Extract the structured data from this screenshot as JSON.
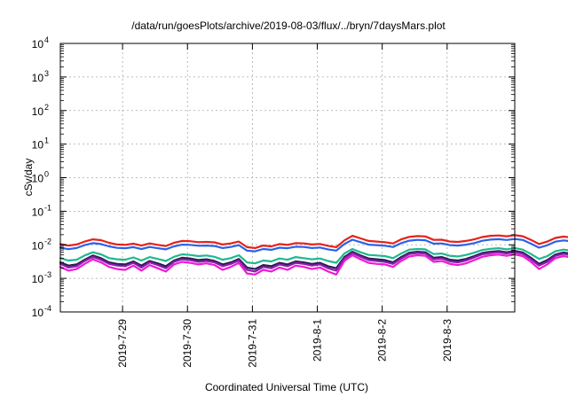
{
  "chart_data": {
    "type": "line",
    "title": "/data/run/goesPlots/archive/2019-08-03/flux/../bryn/7daysMars.plot",
    "xlabel": "Coordinated Universal Time (UTC)",
    "ylabel": "cSv/day",
    "y_scale": "log",
    "ylim": [
      0.0001,
      10000
    ],
    "y_ticks": [
      {
        "value": 0.0001,
        "base": "10",
        "exp": "-4"
      },
      {
        "value": 0.001,
        "base": "10",
        "exp": "-3"
      },
      {
        "value": 0.01,
        "base": "10",
        "exp": "-2"
      },
      {
        "value": 0.1,
        "base": "10",
        "exp": "-1"
      },
      {
        "value": 1,
        "base": "10",
        "exp": "0"
      },
      {
        "value": 10,
        "base": "10",
        "exp": "1"
      },
      {
        "value": 100,
        "base": "10",
        "exp": "2"
      },
      {
        "value": 1000,
        "base": "10",
        "exp": "3"
      },
      {
        "value": 10000,
        "base": "10",
        "exp": "4"
      }
    ],
    "x_range": [
      "2019-07-28T01:00",
      "2019-08-04T01:00"
    ],
    "x_ticks": [
      {
        "label": "2019-7-29",
        "value": "2019-07-29"
      },
      {
        "label": "2019-7-30",
        "value": "2019-07-30"
      },
      {
        "label": "2019-7-31",
        "value": "2019-07-31"
      },
      {
        "label": "2019-8-1",
        "value": "2019-08-01"
      },
      {
        "label": "2019-8-2",
        "value": "2019-08-02"
      },
      {
        "label": "2019-8-3",
        "value": "2019-08-03"
      }
    ],
    "grid": true,
    "x_step_hours": 3,
    "series": [
      {
        "color": "#e8201a",
        "values": [
          0.0105,
          0.0095,
          0.0102,
          0.0125,
          0.0145,
          0.0138,
          0.0115,
          0.0102,
          0.01,
          0.0108,
          0.0095,
          0.011,
          0.01,
          0.0092,
          0.0115,
          0.013,
          0.0128,
          0.012,
          0.0122,
          0.0118,
          0.0102,
          0.011,
          0.0125,
          0.0085,
          0.008,
          0.0095,
          0.009,
          0.0105,
          0.01,
          0.0112,
          0.011,
          0.0102,
          0.0106,
          0.0093,
          0.0085,
          0.0135,
          0.0185,
          0.0155,
          0.013,
          0.0125,
          0.012,
          0.011,
          0.0145,
          0.0172,
          0.0182,
          0.0178,
          0.014,
          0.0142,
          0.0125,
          0.0122,
          0.013,
          0.0145,
          0.017,
          0.0185,
          0.019,
          0.018,
          0.0193,
          0.018,
          0.014,
          0.0105,
          0.0125,
          0.016,
          0.0175,
          0.0165,
          0.017,
          0.0175,
          0.0182,
          0.0178,
          0.016,
          0.015,
          0.0143,
          0.0155,
          0.0175,
          0.0185,
          0.0205,
          0.0195,
          0.018,
          0.016,
          0.014,
          0.012,
          0.011
        ]
      },
      {
        "color": "#2a62e8",
        "values": [
          0.0082,
          0.0074,
          0.008,
          0.0098,
          0.0112,
          0.0105,
          0.009,
          0.0081,
          0.0079,
          0.0085,
          0.0075,
          0.0086,
          0.0079,
          0.0073,
          0.009,
          0.0101,
          0.01,
          0.0094,
          0.0095,
          0.0092,
          0.008,
          0.0086,
          0.0098,
          0.0067,
          0.0064,
          0.0075,
          0.0071,
          0.0082,
          0.0079,
          0.0088,
          0.0086,
          0.008,
          0.0083,
          0.0073,
          0.0067,
          0.0105,
          0.0142,
          0.012,
          0.0101,
          0.0098,
          0.0094,
          0.0086,
          0.0112,
          0.0133,
          0.014,
          0.0137,
          0.0108,
          0.011,
          0.0098,
          0.0095,
          0.0101,
          0.0112,
          0.0132,
          0.0143,
          0.0147,
          0.0139,
          0.0149,
          0.0139,
          0.0108,
          0.0082,
          0.0097,
          0.0124,
          0.0135,
          0.0127,
          0.0131,
          0.0135,
          0.014,
          0.0138,
          0.0124,
          0.0116,
          0.0111,
          0.012,
          0.0135,
          0.0143,
          0.0158,
          0.015,
          0.0139,
          0.0124,
          0.0108,
          0.0094,
          0.0086
        ]
      },
      {
        "color": "#1fb890",
        "values": [
          0.004,
          0.0034,
          0.0036,
          0.0048,
          0.006,
          0.0052,
          0.004,
          0.0037,
          0.0036,
          0.0042,
          0.0034,
          0.0043,
          0.0038,
          0.0033,
          0.0044,
          0.0052,
          0.005,
          0.0046,
          0.0048,
          0.0044,
          0.0036,
          0.004,
          0.0049,
          0.003,
          0.0028,
          0.0034,
          0.0032,
          0.0039,
          0.0036,
          0.0043,
          0.004,
          0.0037,
          0.0039,
          0.0033,
          0.0029,
          0.0055,
          0.0075,
          0.006,
          0.005,
          0.0048,
          0.0046,
          0.004,
          0.0055,
          0.0072,
          0.0075,
          0.0073,
          0.0053,
          0.0055,
          0.0047,
          0.0045,
          0.005,
          0.0058,
          0.007,
          0.0076,
          0.0079,
          0.0073,
          0.008,
          0.0072,
          0.0053,
          0.0038,
          0.0046,
          0.0064,
          0.0072,
          0.0067,
          0.007,
          0.0072,
          0.0076,
          0.0074,
          0.0064,
          0.0058,
          0.0055,
          0.0061,
          0.0072,
          0.0077,
          0.0087,
          0.0082,
          0.0074,
          0.0064,
          0.0054,
          0.0046,
          0.0041
        ]
      },
      {
        "color": "#2a1a52",
        "values": [
          0.003,
          0.0024,
          0.0026,
          0.0036,
          0.0048,
          0.004,
          0.003,
          0.0027,
          0.0026,
          0.0032,
          0.0024,
          0.0033,
          0.0028,
          0.0023,
          0.0034,
          0.0041,
          0.0039,
          0.0035,
          0.0037,
          0.0033,
          0.0026,
          0.003,
          0.0038,
          0.0021,
          0.0019,
          0.0025,
          0.0023,
          0.0029,
          0.0026,
          0.0032,
          0.003,
          0.0027,
          0.0029,
          0.0023,
          0.002,
          0.0043,
          0.0062,
          0.0048,
          0.0039,
          0.0037,
          0.0035,
          0.003,
          0.0043,
          0.0058,
          0.0062,
          0.006,
          0.0041,
          0.0043,
          0.0036,
          0.0034,
          0.0038,
          0.0046,
          0.0057,
          0.0062,
          0.0065,
          0.006,
          0.0066,
          0.0059,
          0.0041,
          0.0027,
          0.0035,
          0.0051,
          0.0059,
          0.0054,
          0.0057,
          0.0059,
          0.0063,
          0.0061,
          0.0051,
          0.0046,
          0.0043,
          0.0049,
          0.0059,
          0.0064,
          0.0073,
          0.0068,
          0.0061,
          0.0051,
          0.0042,
          0.0035,
          0.003
        ]
      },
      {
        "color": "#8a1faa",
        "values": [
          0.0027,
          0.0021,
          0.0023,
          0.0033,
          0.0044,
          0.0036,
          0.0027,
          0.0024,
          0.0023,
          0.0029,
          0.0021,
          0.003,
          0.0025,
          0.002,
          0.0031,
          0.0037,
          0.0035,
          0.0031,
          0.0033,
          0.003,
          0.0023,
          0.0027,
          0.0034,
          0.0018,
          0.0016,
          0.0022,
          0.002,
          0.0026,
          0.0023,
          0.0029,
          0.0027,
          0.0024,
          0.0026,
          0.002,
          0.0017,
          0.0039,
          0.0057,
          0.0044,
          0.0035,
          0.0033,
          0.0031,
          0.0027,
          0.0039,
          0.0053,
          0.0057,
          0.0055,
          0.0037,
          0.0039,
          0.0032,
          0.003,
          0.0034,
          0.0042,
          0.0052,
          0.0057,
          0.006,
          0.0055,
          0.0061,
          0.0054,
          0.0037,
          0.0024,
          0.0031,
          0.0047,
          0.0054,
          0.0049,
          0.0052,
          0.0054,
          0.0058,
          0.0056,
          0.0047,
          0.0042,
          0.0039,
          0.0045,
          0.0054,
          0.0059,
          0.0067,
          0.0062,
          0.0056,
          0.0047,
          0.0038,
          0.0031,
          0.0027
        ]
      },
      {
        "color": "#f018d8",
        "values": [
          0.0022,
          0.0017,
          0.0019,
          0.0027,
          0.0037,
          0.003,
          0.0022,
          0.0019,
          0.0018,
          0.0024,
          0.0017,
          0.0025,
          0.002,
          0.0016,
          0.0026,
          0.0031,
          0.0029,
          0.0026,
          0.0028,
          0.0025,
          0.0018,
          0.0022,
          0.0029,
          0.0014,
          0.0013,
          0.0018,
          0.0016,
          0.0021,
          0.0018,
          0.0024,
          0.0022,
          0.0019,
          0.0021,
          0.0016,
          0.0013,
          0.0033,
          0.0049,
          0.0037,
          0.0029,
          0.0027,
          0.0026,
          0.0022,
          0.0033,
          0.0045,
          0.0049,
          0.0047,
          0.0031,
          0.0033,
          0.0027,
          0.0025,
          0.0028,
          0.0035,
          0.0044,
          0.0049,
          0.0051,
          0.0047,
          0.0052,
          0.0046,
          0.0031,
          0.0019,
          0.0026,
          0.004,
          0.0046,
          0.0042,
          0.0044,
          0.0046,
          0.005,
          0.0048,
          0.004,
          0.0035,
          0.0033,
          0.0038,
          0.0046,
          0.0051,
          0.0058,
          0.0053,
          0.0048,
          0.004,
          0.0032,
          0.0026,
          0.0022
        ]
      }
    ]
  }
}
